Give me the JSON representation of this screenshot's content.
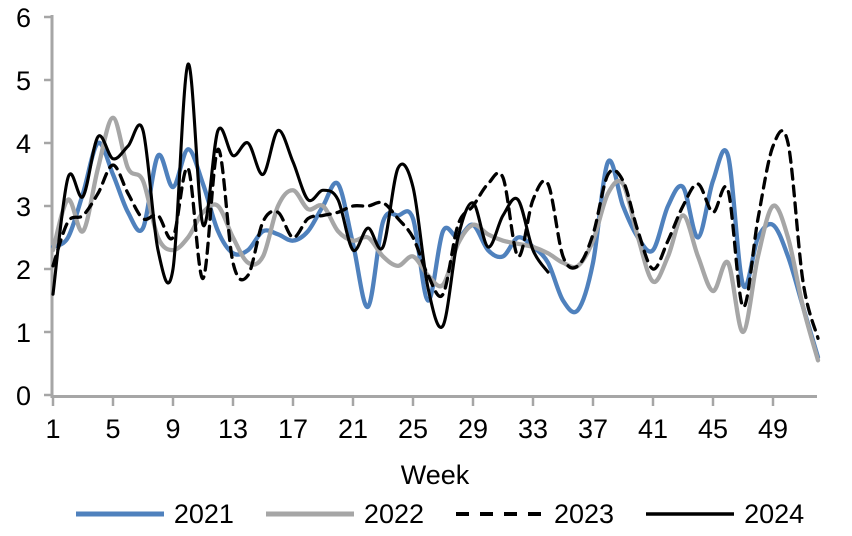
{
  "chart": {
    "axis_color": "#A6A6A6",
    "text_color": "#000000",
    "background": "#FFFFFF"
  },
  "chart_data": {
    "type": "line",
    "title": "",
    "xlabel": "Week",
    "ylabel": "",
    "xlim": [
      1,
      52
    ],
    "ylim": [
      0,
      6
    ],
    "x_start": 1,
    "x_step": 1,
    "x_ticks": [
      1,
      5,
      9,
      13,
      17,
      21,
      25,
      29,
      33,
      37,
      41,
      45,
      49
    ],
    "y_ticks": [
      0,
      1,
      2,
      3,
      4,
      5,
      6
    ],
    "grid": false,
    "legend_position": "bottom",
    "series": [
      {
        "name": "2021",
        "color": "#4F81BD",
        "line_style": "solid",
        "values": [
          2.35,
          2.5,
          3.2,
          4.0,
          3.5,
          2.9,
          2.65,
          3.8,
          3.3,
          3.9,
          3.35,
          2.6,
          2.25,
          2.3,
          2.6,
          2.55,
          2.45,
          2.6,
          3.0,
          3.35,
          2.4,
          1.4,
          2.75,
          2.85,
          2.8,
          1.5,
          2.6,
          2.5,
          2.7,
          2.3,
          2.2,
          2.5,
          2.35,
          2.1,
          1.5,
          1.35,
          2.1,
          3.7,
          3.0,
          2.5,
          2.3,
          3.0,
          3.3,
          2.5,
          3.4,
          3.8,
          1.75,
          2.5,
          2.7,
          2.2,
          1.4,
          0.6
        ]
      },
      {
        "name": "2022",
        "color": "#A6A6A6",
        "line_style": "solid",
        "values": [
          2.3,
          3.1,
          2.6,
          3.6,
          4.4,
          3.6,
          3.4,
          2.5,
          2.3,
          2.5,
          2.9,
          3.0,
          2.5,
          2.1,
          2.2,
          3.0,
          3.25,
          2.95,
          3.0,
          2.6,
          2.45,
          2.5,
          2.2,
          2.05,
          2.2,
          1.9,
          1.75,
          2.4,
          2.7,
          2.55,
          2.45,
          2.4,
          2.35,
          2.25,
          2.1,
          2.05,
          2.45,
          3.2,
          3.35,
          2.5,
          1.8,
          2.2,
          2.85,
          2.2,
          1.65,
          2.1,
          1.0,
          2.2,
          3.0,
          2.5,
          1.4,
          0.55
        ]
      },
      {
        "name": "2023",
        "color": "#000000",
        "line_style": "dashed",
        "values": [
          2.05,
          2.75,
          2.85,
          3.2,
          3.65,
          3.2,
          2.8,
          2.85,
          2.5,
          3.6,
          1.85,
          3.9,
          2.1,
          1.9,
          2.75,
          2.9,
          2.5,
          2.8,
          2.85,
          2.9,
          3.0,
          3.0,
          3.05,
          2.8,
          2.5,
          1.9,
          1.6,
          2.7,
          3.0,
          3.35,
          3.45,
          2.2,
          3.1,
          3.35,
          2.2,
          2.05,
          2.55,
          3.5,
          3.4,
          2.6,
          2.0,
          2.45,
          3.0,
          3.35,
          2.9,
          3.25,
          1.4,
          2.8,
          3.95,
          4.0,
          1.8,
          0.9
        ]
      },
      {
        "name": "2024",
        "color": "#000000",
        "line_style": "solid",
        "values": [
          1.6,
          3.45,
          3.15,
          4.1,
          3.75,
          3.95,
          4.2,
          2.3,
          2.0,
          5.25,
          2.7,
          4.2,
          3.8,
          4.0,
          3.5,
          4.2,
          3.7,
          3.1,
          3.25,
          3.1,
          2.3,
          2.65,
          2.35,
          3.6,
          3.3,
          1.7,
          1.1,
          2.5,
          3.05,
          2.35,
          2.85,
          3.1,
          2.3,
          1.95
        ]
      }
    ]
  }
}
